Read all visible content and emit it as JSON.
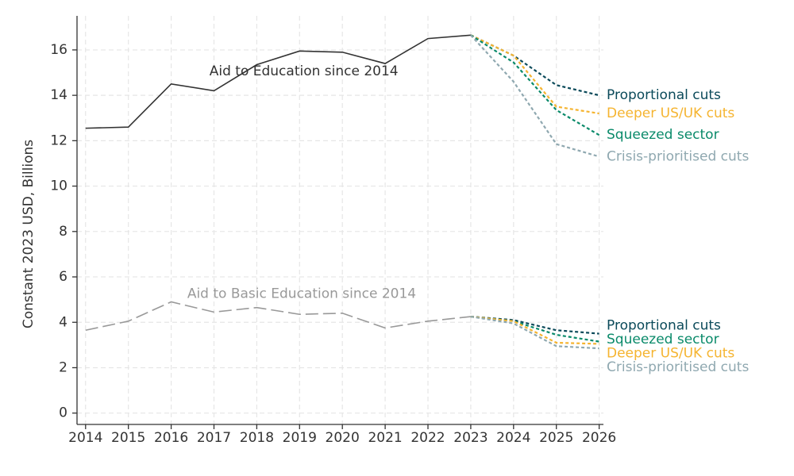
{
  "chart_data": {
    "type": "line",
    "y_label": "Constant 2023 USD, Billions",
    "annotations": [
      "Aid to Education since 2014",
      "Aid to Basic Education since 2014"
    ],
    "x": [
      2014,
      2015,
      2016,
      2017,
      2018,
      2019,
      2020,
      2021,
      2022,
      2023,
      2024,
      2025,
      2026
    ],
    "xlim": [
      2013.8,
      2026.1
    ],
    "xticks": [
      2014,
      2015,
      2016,
      2017,
      2018,
      2019,
      2020,
      2021,
      2022,
      2023,
      2024,
      2025,
      2026
    ],
    "ylim": [
      -0.5,
      17.5
    ],
    "yticks": [
      0,
      2,
      4,
      6,
      8,
      10,
      12,
      14,
      16
    ],
    "grid": true,
    "series": [
      {
        "color": "#333333",
        "dash": "solid",
        "values": [
          12.55,
          12.6,
          14.5,
          14.2,
          15.35,
          15.95,
          15.9,
          15.4,
          16.5,
          16.65,
          null,
          null,
          null
        ]
      },
      {
        "name": "Proportional cuts",
        "color": "#0b4a5a",
        "dash": "dotted",
        "values": [
          null,
          null,
          null,
          null,
          null,
          null,
          null,
          null,
          null,
          16.65,
          15.75,
          14.45,
          14.0
        ]
      },
      {
        "name": "Deeper US/UK cuts",
        "color": "#f5b430",
        "dash": "dotted",
        "values": [
          null,
          null,
          null,
          null,
          null,
          null,
          null,
          null,
          null,
          16.65,
          15.75,
          13.5,
          13.2
        ]
      },
      {
        "name": "Squeezed sector",
        "color": "#0a8a6a",
        "dash": "dotted",
        "values": [
          null,
          null,
          null,
          null,
          null,
          null,
          null,
          null,
          null,
          16.65,
          15.45,
          13.35,
          12.25
        ]
      },
      {
        "name": "Crisis-prioritised cuts",
        "color": "#8fa8b0",
        "dash": "dotted",
        "values": [
          null,
          null,
          null,
          null,
          null,
          null,
          null,
          null,
          null,
          16.65,
          14.6,
          11.85,
          11.3
        ]
      },
      {
        "color": "#999999",
        "dash": "longdash",
        "values": [
          3.65,
          4.05,
          4.9,
          4.45,
          4.65,
          4.35,
          4.4,
          3.75,
          4.05,
          4.25,
          null,
          null,
          null
        ]
      },
      {
        "name": "Proportional cuts",
        "color": "#0b4a5a",
        "dash": "dotted",
        "values": [
          null,
          null,
          null,
          null,
          null,
          null,
          null,
          null,
          null,
          4.25,
          4.1,
          3.65,
          3.5
        ]
      },
      {
        "name": "Squeezed sector",
        "color": "#0a8a6a",
        "dash": "dotted",
        "values": [
          null,
          null,
          null,
          null,
          null,
          null,
          null,
          null,
          null,
          4.25,
          4.05,
          3.45,
          3.15
        ]
      },
      {
        "name": "Deeper US/UK cuts",
        "color": "#f5b430",
        "dash": "dotted",
        "values": [
          null,
          null,
          null,
          null,
          null,
          null,
          null,
          null,
          null,
          4.25,
          4.05,
          3.1,
          3.05
        ]
      },
      {
        "name": "Crisis-prioritised cuts",
        "color": "#8fa8b0",
        "dash": "dotted",
        "values": [
          null,
          null,
          null,
          null,
          null,
          null,
          null,
          null,
          null,
          4.25,
          3.95,
          2.95,
          2.85
        ]
      }
    ]
  }
}
